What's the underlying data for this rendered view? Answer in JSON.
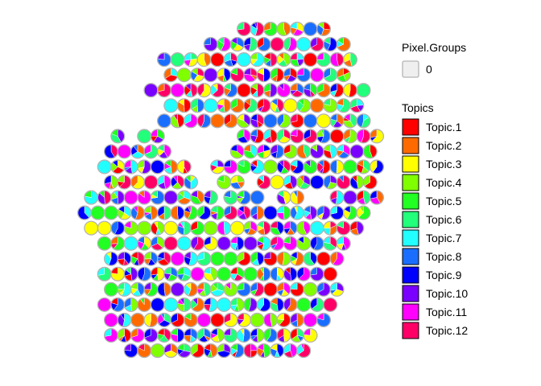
{
  "chart_data": {
    "type": "scatter",
    "subtype": "spatial scatter-pie",
    "title": "",
    "xlabel": "",
    "ylabel": "",
    "axes_visible": false,
    "grid": false,
    "legend_position": "right",
    "pixel_groups_legend": {
      "title": "Pixel.Groups",
      "entries": [
        "0"
      ],
      "swatch_color": "#efefef"
    },
    "topics_legend": {
      "title": "Topics",
      "entries": [
        {
          "name": "Topic.1",
          "color": "#ff0000"
        },
        {
          "name": "Topic.2",
          "color": "#ff6a00"
        },
        {
          "name": "Topic.3",
          "color": "#ffff00"
        },
        {
          "name": "Topic.4",
          "color": "#7fff00"
        },
        {
          "name": "Topic.5",
          "color": "#22ff22"
        },
        {
          "name": "Topic.6",
          "color": "#22ff7a"
        },
        {
          "name": "Topic.7",
          "color": "#22ffff"
        },
        {
          "name": "Topic.8",
          "color": "#1a6eff"
        },
        {
          "name": "Topic.9",
          "color": "#0000ff"
        },
        {
          "name": "Topic.10",
          "color": "#7a00ff"
        },
        {
          "name": "Topic.11",
          "color": "#ff00ff"
        },
        {
          "name": "Topic.12",
          "color": "#ff0066"
        }
      ]
    },
    "pixel_rows": [
      {
        "y": 0,
        "xs": [
          24,
          26,
          28,
          30,
          32,
          34,
          36
        ]
      },
      {
        "y": 1,
        "xs": [
          19,
          21,
          23,
          25,
          27,
          29,
          31,
          33,
          35,
          37,
          39
        ]
      },
      {
        "y": 2,
        "xs": [
          12,
          14,
          16,
          18,
          20,
          22,
          24,
          26,
          28,
          30,
          32,
          34,
          36,
          38,
          40
        ]
      },
      {
        "y": 3,
        "xs": [
          13,
          15,
          17,
          19,
          21,
          23,
          25,
          27,
          29,
          31,
          33,
          35,
          37,
          39
        ]
      },
      {
        "y": 4,
        "xs": [
          10,
          12,
          14,
          16,
          18,
          20,
          22,
          24,
          26,
          28,
          30,
          32,
          34,
          36,
          38,
          40,
          42
        ]
      },
      {
        "y": 5,
        "xs": [
          13,
          15,
          17,
          19,
          21,
          23,
          25,
          27,
          29,
          31,
          33,
          35,
          37,
          39,
          41
        ]
      },
      {
        "y": 6,
        "xs": [
          12,
          14,
          16,
          18,
          20,
          22,
          24,
          26,
          28,
          30,
          32,
          34,
          36,
          38,
          40,
          42
        ]
      },
      {
        "y": 7,
        "xs": [
          5,
          9,
          11,
          24,
          26,
          28,
          30,
          32,
          34,
          36,
          38,
          40,
          42,
          44
        ]
      },
      {
        "y": 8,
        "xs": [
          4,
          6,
          8,
          10,
          12,
          23,
          25,
          27,
          29,
          31,
          33,
          35,
          37,
          39,
          41,
          43
        ]
      },
      {
        "y": 9,
        "xs": [
          3,
          5,
          7,
          9,
          11,
          13,
          15,
          20,
          22,
          24,
          26,
          28,
          30,
          32,
          34,
          36,
          38,
          40,
          42,
          44
        ]
      },
      {
        "y": 10,
        "xs": [
          4,
          6,
          8,
          10,
          12,
          14,
          16,
          21,
          23,
          27,
          29,
          31,
          33,
          35,
          37,
          39,
          41,
          43
        ]
      },
      {
        "y": 11,
        "xs": [
          1,
          3,
          5,
          7,
          9,
          11,
          13,
          15,
          17,
          19,
          22,
          24,
          26,
          30,
          32,
          38,
          40,
          42,
          44
        ]
      },
      {
        "y": 12,
        "xs": [
          0,
          2,
          4,
          6,
          8,
          10,
          12,
          14,
          16,
          18,
          20,
          22,
          24,
          26,
          28,
          30,
          32,
          34,
          36,
          38,
          40,
          42
        ]
      },
      {
        "y": 13,
        "xs": [
          1,
          3,
          5,
          7,
          9,
          11,
          13,
          15,
          17,
          19,
          21,
          23,
          25,
          27,
          29,
          31,
          33,
          35,
          37,
          39,
          41
        ]
      },
      {
        "y": 14,
        "xs": [
          3,
          5,
          7,
          9,
          11,
          13,
          15,
          17,
          19,
          21,
          23,
          25,
          27,
          29,
          31,
          33,
          35,
          37,
          39
        ]
      },
      {
        "y": 15,
        "xs": [
          4,
          6,
          8,
          10,
          12,
          14,
          16,
          18,
          20,
          22,
          24,
          26,
          28,
          30,
          32,
          34,
          36,
          38
        ]
      },
      {
        "y": 16,
        "xs": [
          3,
          5,
          7,
          9,
          11,
          13,
          15,
          17,
          19,
          21,
          23,
          25,
          27,
          29,
          31,
          33,
          35,
          37
        ]
      },
      {
        "y": 17,
        "xs": [
          4,
          6,
          8,
          10,
          12,
          14,
          16,
          18,
          20,
          22,
          24,
          26,
          28,
          30,
          32,
          34,
          36,
          38
        ]
      },
      {
        "y": 18,
        "xs": [
          3,
          5,
          7,
          9,
          11,
          13,
          15,
          17,
          19,
          21,
          23,
          25,
          27,
          29,
          31,
          33,
          35,
          37
        ]
      },
      {
        "y": 19,
        "xs": [
          4,
          6,
          8,
          10,
          12,
          14,
          16,
          18,
          20,
          22,
          24,
          26,
          28,
          30,
          32,
          34,
          36
        ]
      },
      {
        "y": 20,
        "xs": [
          4,
          6,
          8,
          10,
          12,
          14,
          16,
          18,
          20,
          22,
          24,
          26,
          28,
          30,
          32,
          34
        ]
      },
      {
        "y": 21,
        "xs": [
          7,
          9,
          11,
          13,
          15,
          17,
          19,
          21,
          23,
          25,
          27,
          29,
          31,
          33
        ]
      }
    ]
  }
}
